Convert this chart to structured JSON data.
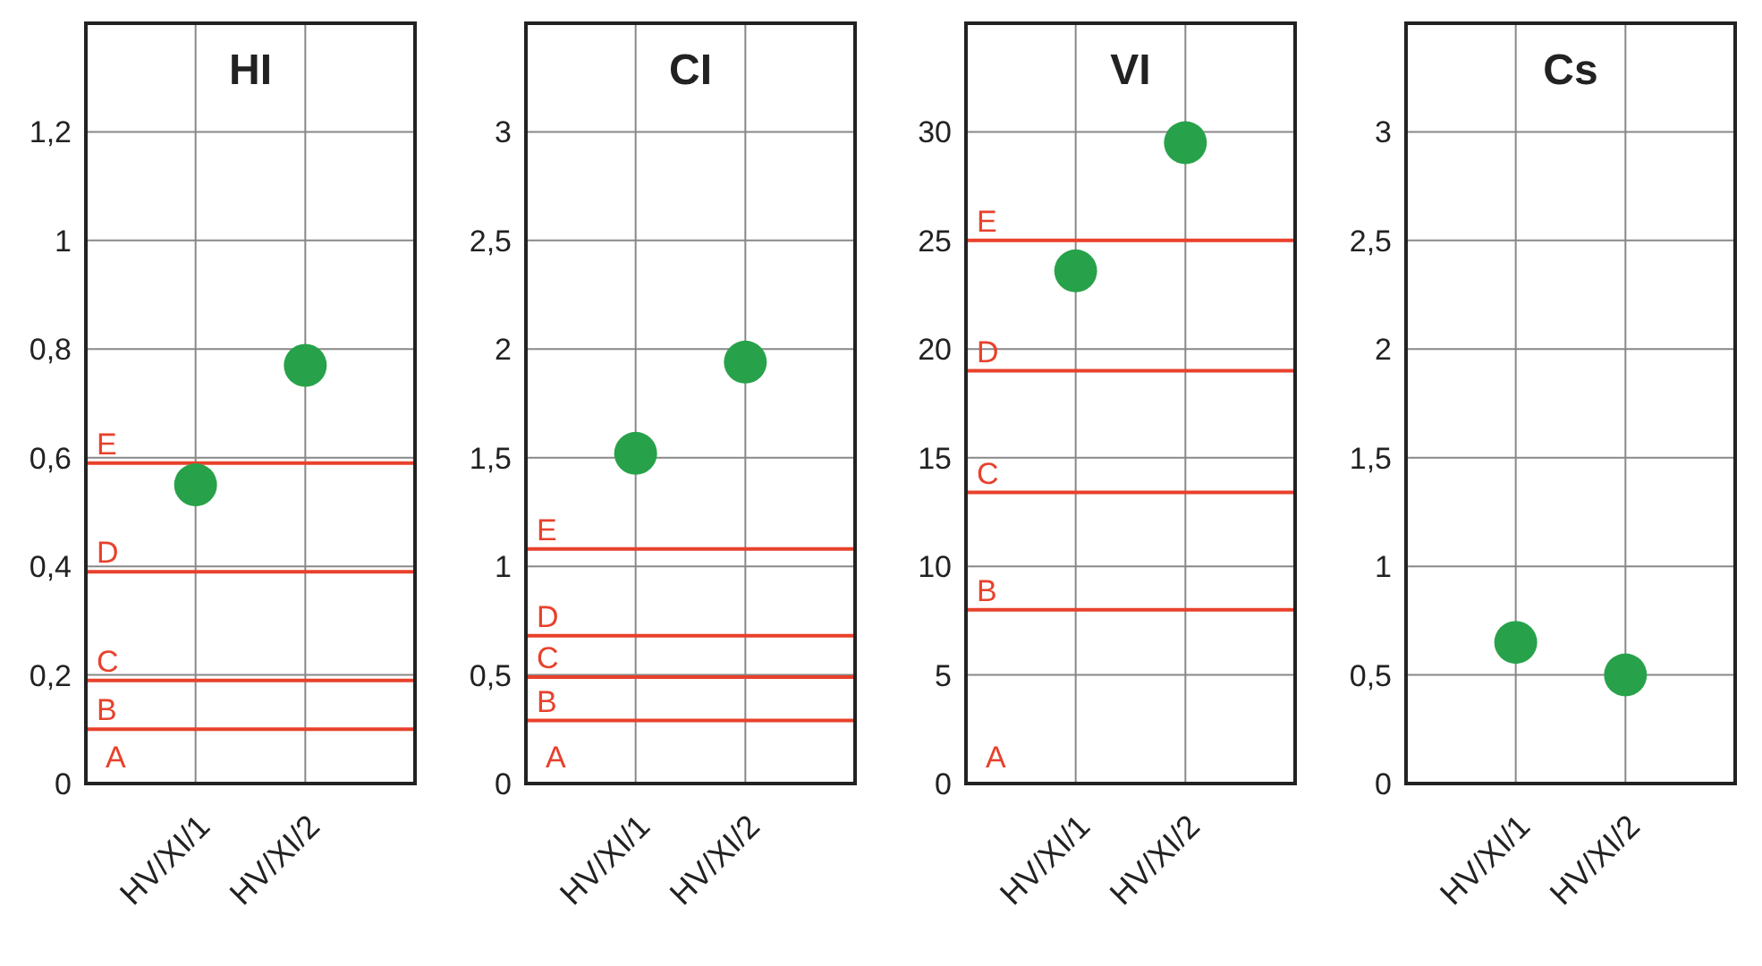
{
  "chart_data": [
    {
      "type": "scatter",
      "title": "HI",
      "categories": [
        "HV/XI/1",
        "HV/XI/2"
      ],
      "series": [
        {
          "color": "#27a24a",
          "values": [
            0.55,
            0.77
          ]
        }
      ],
      "ylim": [
        0,
        1.4
      ],
      "yticks": [
        0,
        {
          "value": 0.2,
          "label": "0,2"
        },
        {
          "value": 0.4,
          "label": "0,4"
        },
        {
          "value": 0.6,
          "label": "0,6"
        },
        {
          "value": 0.8,
          "label": "0,8"
        },
        1,
        {
          "value": 1.2,
          "label": "1,2"
        }
      ],
      "grid": true,
      "marker": "circle",
      "annotations": [
        "A"
      ],
      "ref_lines": [
        {
          "axis": "y",
          "value": 0.1,
          "label": "B",
          "color": "#e8412c"
        },
        {
          "axis": "y",
          "value": 0.19,
          "label": "C",
          "color": "#e8412c"
        },
        {
          "axis": "y",
          "value": 0.39,
          "label": "D",
          "color": "#e8412c"
        },
        {
          "axis": "y",
          "value": 0.59,
          "label": "E",
          "color": "#e8412c"
        }
      ]
    },
    {
      "type": "scatter",
      "title": "CI",
      "categories": [
        "HV/XI/1",
        "HV/XI/2"
      ],
      "series": [
        {
          "color": "#27a24a",
          "values": [
            1.52,
            1.94
          ]
        }
      ],
      "ylim": [
        0,
        3.5
      ],
      "yticks": [
        0,
        {
          "value": 0.5,
          "label": "0,5"
        },
        1,
        {
          "value": 1.5,
          "label": "1,5"
        },
        2,
        {
          "value": 2.5,
          "label": "2,5"
        },
        3
      ],
      "grid": true,
      "marker": "circle",
      "annotations": [
        "A"
      ],
      "ref_lines": [
        {
          "axis": "y",
          "value": 0.29,
          "label": "B",
          "color": "#e8412c"
        },
        {
          "axis": "y",
          "value": 0.49,
          "label": "C",
          "color": "#e8412c"
        },
        {
          "axis": "y",
          "value": 0.68,
          "label": "D",
          "color": "#e8412c"
        },
        {
          "axis": "y",
          "value": 1.08,
          "label": "E",
          "color": "#e8412c"
        }
      ]
    },
    {
      "type": "scatter",
      "title": "VI",
      "categories": [
        "HV/XI/1",
        "HV/XI/2"
      ],
      "series": [
        {
          "color": "#27a24a",
          "values": [
            23.6,
            29.5
          ]
        }
      ],
      "ylim": [
        0,
        35
      ],
      "yticks": [
        0,
        5,
        10,
        15,
        20,
        25,
        30
      ],
      "grid": true,
      "marker": "circle",
      "annotations": [
        "A"
      ],
      "ref_lines": [
        {
          "axis": "y",
          "value": 8,
          "label": "B",
          "color": "#e8412c"
        },
        {
          "axis": "y",
          "value": 13.4,
          "label": "C",
          "color": "#e8412c"
        },
        {
          "axis": "y",
          "value": 19,
          "label": "D",
          "color": "#e8412c"
        },
        {
          "axis": "y",
          "value": 25,
          "label": "E",
          "color": "#e8412c"
        }
      ]
    },
    {
      "type": "scatter",
      "title": "Cs",
      "categories": [
        "HV/XI/1",
        "HV/XI/2"
      ],
      "series": [
        {
          "color": "#27a24a",
          "values": [
            0.65,
            0.5
          ]
        }
      ],
      "ylim": [
        0,
        3.5
      ],
      "yticks": [
        0,
        {
          "value": 0.5,
          "label": "0,5"
        },
        1,
        {
          "value": 1.5,
          "label": "1,5"
        },
        2,
        {
          "value": 2.5,
          "label": "2,5"
        },
        3
      ],
      "grid": true,
      "marker": "circle"
    }
  ]
}
